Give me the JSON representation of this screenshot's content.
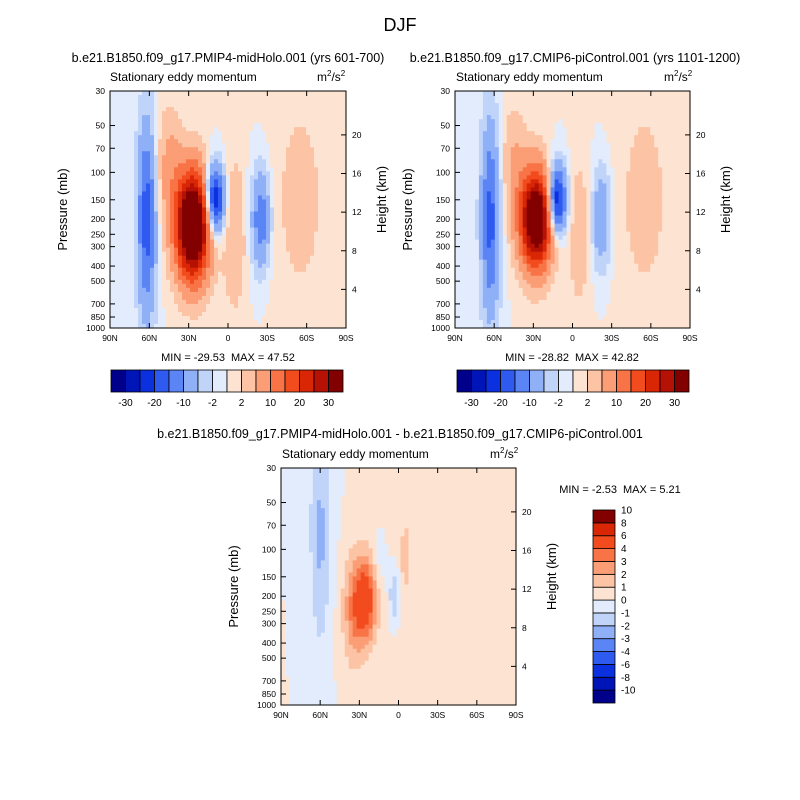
{
  "page_title": "DJF",
  "chart_data": [
    {
      "type": "heatmap",
      "title": "b.e21.B1850.f09_g17.PMIP4-midHolo.001 (yrs 601-700)",
      "subtitle_left": "Stationary eddy momentum",
      "units": "m²/s²",
      "units_base": "m",
      "units_sup1": "2",
      "units_mid": "/s",
      "units_sup2": "2",
      "ylabel": "Pressure (mb)",
      "ylabel_right": "Height (km)",
      "x_ticks": [
        "90N",
        "60N",
        "30N",
        "0",
        "30S",
        "60S",
        "90S"
      ],
      "x_lat": [
        90,
        60,
        30,
        0,
        -30,
        -60,
        -90
      ],
      "y_ticks": [
        "30",
        "50",
        "70",
        "100",
        "150",
        "200",
        "250",
        "300",
        "400",
        "500",
        "700",
        "850",
        "1000"
      ],
      "y_levels": [
        30,
        50,
        70,
        100,
        150,
        200,
        250,
        300,
        400,
        500,
        700,
        850,
        1000
      ],
      "height_ticks": [
        "4",
        "8",
        "12",
        "16",
        "20"
      ],
      "height_km": [
        4,
        8,
        12,
        16,
        20
      ],
      "min_label": "MIN = -29.53",
      "max_label": "MAX =  47.52",
      "min": -29.53,
      "max": 47.52,
      "features": [
        {
          "lat": 27,
          "p": 220,
          "amp": 47,
          "wlat": 9,
          "wp": 0.55
        },
        {
          "lat": 62,
          "p": 200,
          "amp": -18,
          "wlat": 5,
          "wp": 1.0
        },
        {
          "lat": 10,
          "p": 150,
          "amp": -28,
          "wlat": 5,
          "wp": 0.35
        },
        {
          "lat": -25,
          "p": 200,
          "amp": -14,
          "wlat": 5,
          "wp": 0.5
        },
        {
          "lat": 45,
          "p": 90,
          "amp": 6,
          "wlat": 7,
          "wp": 0.6
        },
        {
          "lat": -5,
          "p": 250,
          "amp": 5,
          "wlat": 6,
          "wp": 0.8
        },
        {
          "lat": -55,
          "p": 150,
          "amp": 3,
          "wlat": 15,
          "wp": 1.2
        }
      ]
    },
    {
      "type": "heatmap",
      "title": "b.e21.B1850.f09_g17.CMIP6-piControl.001 (yrs 1101-1200)",
      "subtitle_left": "Stationary eddy momentum",
      "units": "m²/s²",
      "units_base": "m",
      "units_sup1": "2",
      "units_mid": "/s",
      "units_sup2": "2",
      "ylabel": "Pressure (mb)",
      "ylabel_right": "Height (km)",
      "x_ticks": [
        "90N",
        "60N",
        "30N",
        "0",
        "30S",
        "60S",
        "90S"
      ],
      "x_lat": [
        90,
        60,
        30,
        0,
        -30,
        -60,
        -90
      ],
      "y_ticks": [
        "30",
        "50",
        "70",
        "100",
        "150",
        "200",
        "250",
        "300",
        "400",
        "500",
        "700",
        "850",
        "1000"
      ],
      "y_levels": [
        30,
        50,
        70,
        100,
        150,
        200,
        250,
        300,
        400,
        500,
        700,
        850,
        1000
      ],
      "height_ticks": [
        "4",
        "8",
        "12",
        "16",
        "20"
      ],
      "height_km": [
        4,
        8,
        12,
        16,
        20
      ],
      "min_label": "MIN = -28.82",
      "max_label": "MAX =  42.82",
      "min": -28.82,
      "max": 42.82,
      "features": [
        {
          "lat": 28,
          "p": 200,
          "amp": 42,
          "wlat": 8.5,
          "wp": 0.5
        },
        {
          "lat": 63,
          "p": 200,
          "amp": -17,
          "wlat": 5,
          "wp": 1.0
        },
        {
          "lat": 12,
          "p": 150,
          "amp": -27,
          "wlat": 5,
          "wp": 0.35
        },
        {
          "lat": -22,
          "p": 200,
          "amp": -10,
          "wlat": 5,
          "wp": 0.5
        },
        {
          "lat": 45,
          "p": 90,
          "amp": 5,
          "wlat": 7,
          "wp": 0.6
        },
        {
          "lat": -5,
          "p": 250,
          "amp": 4,
          "wlat": 6,
          "wp": 0.8
        },
        {
          "lat": -55,
          "p": 150,
          "amp": 3,
          "wlat": 15,
          "wp": 1.2
        }
      ]
    },
    {
      "type": "heatmap",
      "title": "b.e21.B1850.f09_g17.PMIP4-midHolo.001 - b.e21.B1850.f09_g17.CMIP6-piControl.001",
      "subtitle_left": "Stationary eddy momentum",
      "units": "m²/s²",
      "units_base": "m",
      "units_sup1": "2",
      "units_mid": "/s",
      "units_sup2": "2",
      "ylabel": "Pressure (mb)",
      "ylabel_right": "Height (km)",
      "x_ticks": [
        "90N",
        "60N",
        "30N",
        "0",
        "30S",
        "60S",
        "90S"
      ],
      "x_lat": [
        90,
        60,
        30,
        0,
        -30,
        -60,
        -90
      ],
      "y_ticks": [
        "30",
        "50",
        "70",
        "100",
        "150",
        "200",
        "250",
        "300",
        "400",
        "500",
        "700",
        "850",
        "1000"
      ],
      "y_levels": [
        30,
        50,
        70,
        100,
        150,
        200,
        250,
        300,
        400,
        500,
        700,
        850,
        1000
      ],
      "height_ticks": [
        "4",
        "8",
        "12",
        "16",
        "20"
      ],
      "height_km": [
        4,
        8,
        12,
        16,
        20
      ],
      "min_label": "MIN =  -2.53",
      "max_label": "MAX =   5.21",
      "min": -2.53,
      "max": 5.21,
      "features": [
        {
          "lat": 25,
          "p": 210,
          "amp": 5,
          "wlat": 6,
          "wp": 0.45
        },
        {
          "lat": 35,
          "p": 250,
          "amp": 2.5,
          "wlat": 6,
          "wp": 0.6
        },
        {
          "lat": 60,
          "p": 60,
          "amp": -1.8,
          "wlat": 6,
          "wp": 1.0
        },
        {
          "lat": 60,
          "p": 200,
          "amp": -0.8,
          "wlat": 5,
          "wp": 1.0
        },
        {
          "lat": 3,
          "p": 200,
          "amp": -2.3,
          "wlat": 3,
          "wp": 0.3
        },
        {
          "lat": -5,
          "p": 110,
          "amp": 1.5,
          "wlat": 2.5,
          "wp": 0.3
        },
        {
          "lat": 15,
          "p": 120,
          "amp": -0.9,
          "wlat": 4,
          "wp": 0.3
        },
        {
          "lat": -30,
          "p": 200,
          "amp": 0.8,
          "wlat": 25,
          "wp": 1.5
        }
      ]
    }
  ],
  "colorbar_full": {
    "colors": [
      "#00008b",
      "#0015b7",
      "#0a30e0",
      "#2f5af0",
      "#5b84f4",
      "#8fb0f7",
      "#c0d4fa",
      "#e2ecfc",
      "#fde4d2",
      "#fcc3a4",
      "#fb9d75",
      "#f87446",
      "#f24b1e",
      "#d92705",
      "#b51105",
      "#820000"
    ],
    "tick_labels": [
      "-30",
      "-20",
      "-10",
      "-2",
      "2",
      "10",
      "20",
      "30"
    ],
    "levels": [
      -30,
      -25,
      -20,
      -15,
      -10,
      -5,
      -2,
      0,
      2,
      5,
      10,
      15,
      20,
      25,
      30
    ]
  },
  "colorbar_diff": {
    "colors": [
      "#00008b",
      "#0015b7",
      "#0a30e0",
      "#2f5af0",
      "#5b84f4",
      "#8fb0f7",
      "#c0d4fa",
      "#e2ecfc",
      "#fde4d2",
      "#fcc3a4",
      "#fb9d75",
      "#f87446",
      "#f24b1e",
      "#d92705",
      "#820000"
    ],
    "tick_labels": [
      "-10",
      "-8",
      "-6",
      "-4",
      "-3",
      "-2",
      "-1",
      "0",
      "1",
      "2",
      "3",
      "4",
      "6",
      "8",
      "10"
    ],
    "levels": [
      -10,
      -8,
      -6,
      -4,
      -3,
      -2,
      -1,
      0,
      1,
      2,
      3,
      4,
      6,
      8,
      10
    ]
  }
}
